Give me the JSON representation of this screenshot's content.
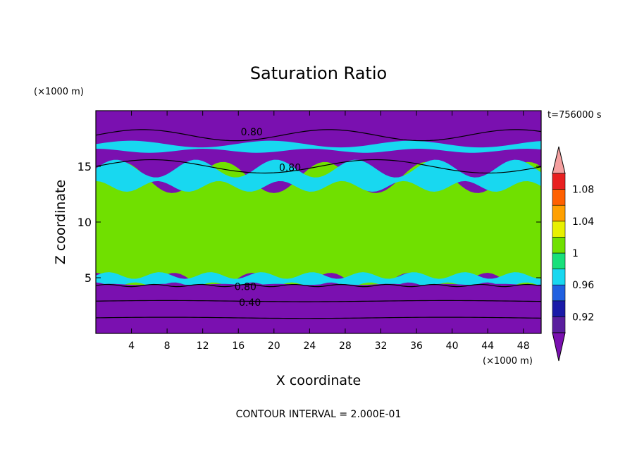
{
  "chart_data": {
    "type": "heatmap",
    "title": "Saturation Ratio",
    "time_label": "t=756000 s",
    "xlabel": "X coordinate",
    "ylabel": "Z coordinate",
    "x_units": "(×1000 m)",
    "z_units": "(×1000 m)",
    "xlim": [
      0,
      50
    ],
    "zlim": [
      0,
      20
    ],
    "x_ticks": [
      4,
      8,
      12,
      16,
      20,
      24,
      28,
      32,
      36,
      40,
      44,
      48
    ],
    "z_ticks": [
      5,
      10,
      15
    ],
    "footer": "CONTOUR INTERVAL = 2.000E-01",
    "contour_labels": [
      {
        "text": "0.80",
        "x": 17.5,
        "z": 18.1
      },
      {
        "text": "0.80",
        "x": 21.8,
        "z": 14.9
      },
      {
        "text": "0.80",
        "x": 16.8,
        "z": 4.2
      },
      {
        "text": "0.40",
        "x": 17.3,
        "z": 2.8
      }
    ],
    "colorbar": {
      "boundaries": [
        0.9,
        0.92,
        0.94,
        0.96,
        0.98,
        1.0,
        1.02,
        1.04,
        1.06,
        1.08,
        1.1
      ],
      "tick_labels": [
        "0.92",
        "0.96",
        "1",
        "1.04",
        "1.08"
      ],
      "tick_values": [
        0.92,
        0.96,
        1.0,
        1.04,
        1.08
      ],
      "colors": [
        "#5a1e9e",
        "#1a1aa8",
        "#2060e0",
        "#18d8f0",
        "#18e07a",
        "#70e000",
        "#e8f000",
        "#ffa000",
        "#ff6000",
        "#e82020"
      ],
      "under_color": "#7a10b0",
      "over_color": "#f5a0a0"
    },
    "regions": {
      "sky_level": 0.8,
      "cloud_layer_level": 1.0,
      "lower_band_level": 0.8,
      "boundary_level": 0.4
    }
  }
}
